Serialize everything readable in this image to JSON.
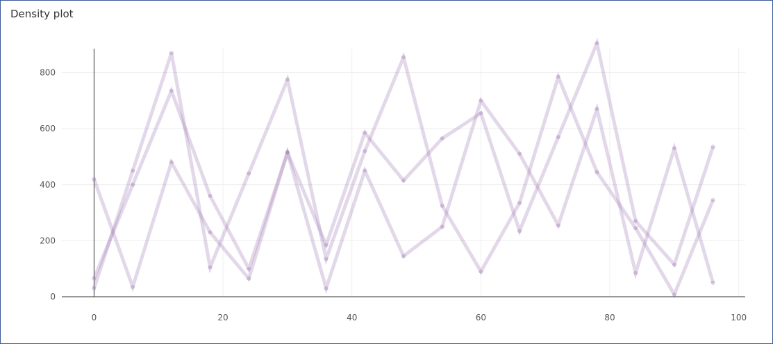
{
  "panel": {
    "title": "Density plot"
  },
  "colors": {
    "series": "#9b72b0",
    "grid": "#eeeeee",
    "axis": "#333333"
  },
  "chart_data": {
    "type": "line",
    "title": "Density plot",
    "xlabel": "",
    "ylabel": "",
    "xlim": [
      -5,
      101
    ],
    "ylim": [
      0,
      960
    ],
    "xticks": [
      0,
      20,
      40,
      60,
      80,
      100
    ],
    "yticks": [
      0,
      200,
      400,
      600,
      800
    ],
    "grid": true,
    "x": [
      0,
      6,
      12,
      18,
      24,
      30,
      36,
      42,
      48,
      54,
      60,
      66,
      72,
      78,
      84,
      90,
      96
    ],
    "series": [
      {
        "values": [
          420,
          35,
          480,
          230,
          65,
          515,
          30,
          450,
          145,
          250,
          700,
          510,
          255,
          670,
          85,
          530,
          50
        ]
      },
      {
        "values": [
          30,
          450,
          870,
          105,
          440,
          775,
          135,
          520,
          855,
          325,
          90,
          335,
          785,
          445,
          245,
          8,
          345
        ]
      },
      {
        "values": [
          65,
          400,
          735,
          360,
          100,
          515,
          185,
          585,
          415,
          565,
          655,
          235,
          570,
          905,
          270,
          115,
          535
        ]
      }
    ]
  }
}
